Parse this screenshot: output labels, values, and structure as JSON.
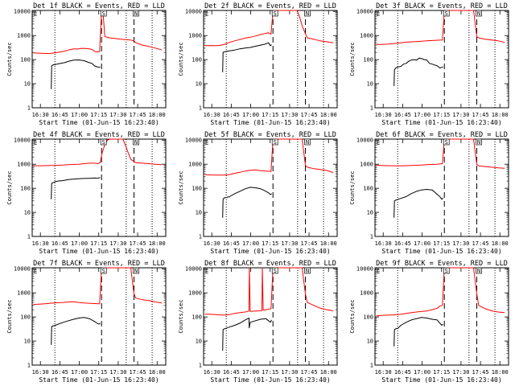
{
  "chart_data": {
    "type": "line",
    "figure_layout": "3x3 grid of log-scale count-rate plots",
    "common": {
      "ylabel": "Counts/sec",
      "xlabel": "Start Time (01-Jun-15 16:23:40)",
      "x_ticks": [
        "16:30",
        "16:45",
        "17:00",
        "17:15",
        "17:30",
        "17:45",
        "18:00"
      ],
      "x_tick_minutes": [
        6.33,
        21.33,
        36.33,
        51.33,
        66.33,
        81.33,
        96.33
      ],
      "xlim_minutes": [
        0,
        103
      ],
      "y_ticks": [
        "1",
        "10",
        "100",
        "1000",
        "10000"
      ],
      "ylim": [
        1,
        11000
      ],
      "y_scale": "log",
      "series_colors": {
        "events": "#000000",
        "lld": "#ff0000"
      },
      "dotted_lines_minutes": [
        17.5,
        72.5,
        92.5
      ],
      "dashed_lines_minutes": [
        53.5,
        78.5
      ],
      "marker_S_minutes": 53.5,
      "marker_N_minutes": 78.5
    },
    "panels": [
      {
        "title": "Det 1f BLACK = Events, RED = LLD",
        "events": {
          "x": [
            14.7,
            15,
            16,
            18,
            20,
            22,
            25,
            28,
            32,
            36,
            40,
            44,
            46,
            48,
            50,
            51.5,
            52.5
          ],
          "y": [
            6,
            55,
            60,
            63,
            66,
            70,
            75,
            85,
            95,
            97,
            90,
            75,
            70,
            55,
            50,
            48,
            50
          ]
        },
        "lld": {
          "x": [
            1,
            5,
            10,
            14,
            17,
            20,
            23,
            26,
            29,
            32,
            35,
            38,
            41,
            44,
            46,
            48,
            50,
            52,
            53.5,
            54.5,
            56,
            60,
            64,
            68,
            72,
            76,
            78.5,
            80,
            85,
            90,
            95,
            100
          ],
          "y": [
            190,
            185,
            180,
            180,
            190,
            200,
            215,
            230,
            260,
            280,
            275,
            295,
            290,
            280,
            265,
            220,
            210,
            215,
            10500,
            11000,
            900,
            800,
            750,
            700,
            680,
            650,
            600,
            500,
            400,
            350,
            300,
            250
          ]
        }
      },
      {
        "title": "Det 2f BLACK = Events, RED = LLD",
        "events": {
          "x": [
            14.7,
            15,
            16,
            18,
            20,
            24,
            28,
            32,
            36,
            40,
            44,
            48,
            50,
            51.5,
            52.5
          ],
          "y": [
            30,
            200,
            210,
            220,
            230,
            250,
            280,
            300,
            320,
            360,
            400,
            450,
            500,
            380,
            420
          ]
        },
        "lld": {
          "x": [
            1,
            5,
            10,
            14,
            17,
            20,
            24,
            28,
            32,
            36,
            40,
            44,
            47,
            50,
            52,
            53.5,
            54,
            56,
            60,
            64,
            68,
            72,
            74,
            76,
            78.5,
            80,
            85,
            90,
            95,
            100
          ],
          "y": [
            380,
            385,
            380,
            400,
            450,
            520,
            600,
            680,
            780,
            850,
            950,
            1100,
            1200,
            1300,
            1150,
            10000,
            11000,
            11000,
            11000,
            11000,
            11000,
            11000,
            6000,
            2500,
            1200,
            800,
            700,
            600,
            550,
            500
          ]
        }
      },
      {
        "title": "Det 3f BLACK = Events, RED = LLD",
        "events": {
          "x": [
            14.7,
            15,
            16,
            18,
            20,
            22,
            24,
            26,
            28,
            30,
            32,
            34,
            36,
            38,
            40,
            42,
            44,
            46,
            48,
            50,
            51.5,
            52.5
          ],
          "y": [
            8,
            38,
            45,
            50,
            52,
            65,
            70,
            85,
            95,
            100,
            95,
            115,
            110,
            100,
            95,
            70,
            65,
            60,
            55,
            45,
            48,
            50
          ]
        },
        "lld": {
          "x": [
            1,
            5,
            10,
            14,
            17,
            20,
            24,
            28,
            32,
            36,
            40,
            44,
            48,
            52,
            53.5,
            54.5,
            56,
            60,
            64,
            68,
            72,
            76,
            78.5,
            80,
            85,
            90,
            95,
            100
          ],
          "y": [
            430,
            430,
            440,
            460,
            480,
            500,
            530,
            550,
            560,
            580,
            600,
            620,
            640,
            650,
            10500,
            11000,
            11000,
            11000,
            11000,
            11000,
            11000,
            11000,
            900,
            800,
            700,
            650,
            600,
            520
          ]
        }
      },
      {
        "title": "Det 4f BLACK = Events, RED = LLD",
        "events": {
          "x": [
            14.7,
            15,
            16,
            18,
            20,
            24,
            28,
            32,
            36,
            40,
            44,
            48,
            50,
            51.5,
            52.5
          ],
          "y": [
            35,
            160,
            170,
            190,
            200,
            210,
            230,
            240,
            250,
            255,
            260,
            265,
            260,
            270,
            280
          ]
        },
        "lld": {
          "x": [
            1,
            5,
            10,
            14,
            17,
            20,
            24,
            28,
            32,
            36,
            40,
            44,
            48,
            51,
            52.5,
            54,
            56,
            58,
            60,
            62,
            64,
            66,
            68,
            70,
            72,
            74,
            76,
            78.5,
            80,
            85,
            90,
            95,
            100
          ],
          "y": [
            860,
            860,
            870,
            880,
            890,
            900,
            920,
            950,
            980,
            1000,
            1050,
            1100,
            1100,
            1050,
            1200,
            3000,
            6500,
            10000,
            11000,
            11000,
            11000,
            11000,
            11000,
            11000,
            6000,
            3000,
            1600,
            1300,
            1150,
            1100,
            1050,
            1000,
            950
          ]
        }
      },
      {
        "title": "Det 5f BLACK = Events, RED = LLD",
        "events": {
          "x": [
            14.7,
            15,
            16,
            18,
            20,
            24,
            28,
            32,
            36,
            40,
            44,
            46,
            48,
            50,
            51.5,
            52.5
          ],
          "y": [
            6,
            35,
            40,
            42,
            45,
            60,
            75,
            95,
            110,
            105,
            95,
            85,
            75,
            65,
            55,
            60
          ]
        },
        "lld": {
          "x": [
            1,
            5,
            10,
            14,
            17,
            20,
            24,
            28,
            32,
            36,
            40,
            44,
            48,
            52,
            53.5,
            54.5,
            56,
            60,
            64,
            68,
            72,
            76,
            78.5,
            80,
            85,
            90,
            95,
            100
          ],
          "y": [
            370,
            360,
            350,
            350,
            360,
            370,
            420,
            460,
            520,
            560,
            580,
            540,
            520,
            500,
            10500,
            11000,
            11000,
            11000,
            11000,
            11000,
            11000,
            11000,
            900,
            750,
            650,
            600,
            550,
            450
          ]
        }
      },
      {
        "title": "Det 6f BLACK = Events, RED = LLD",
        "events": {
          "x": [
            14.7,
            15,
            16,
            18,
            20,
            24,
            28,
            32,
            36,
            40,
            44,
            46,
            48,
            50,
            51.5,
            52.5
          ],
          "y": [
            6,
            30,
            32,
            35,
            38,
            45,
            60,
            75,
            85,
            90,
            85,
            70,
            55,
            45,
            35,
            40
          ]
        },
        "lld": {
          "x": [
            1,
            5,
            10,
            14,
            17,
            20,
            24,
            28,
            32,
            36,
            40,
            44,
            48,
            52,
            53.5,
            54.5,
            56,
            60,
            64,
            68,
            72,
            76,
            78.5,
            80,
            85,
            90,
            95,
            100
          ],
          "y": [
            900,
            880,
            870,
            860,
            850,
            860,
            870,
            880,
            900,
            920,
            950,
            980,
            1000,
            1050,
            10500,
            11000,
            11000,
            11000,
            11000,
            11000,
            11000,
            11000,
            1000,
            850,
            800,
            750,
            700,
            680
          ]
        }
      },
      {
        "title": "Det 7f BLACK = Events, RED = LLD",
        "events": {
          "x": [
            14.7,
            15,
            16,
            18,
            20,
            24,
            28,
            32,
            36,
            40,
            44,
            48,
            50,
            51.5,
            52.5
          ],
          "y": [
            7,
            40,
            42,
            45,
            50,
            60,
            70,
            80,
            90,
            95,
            85,
            65,
            55,
            50,
            55
          ]
        },
        "lld": {
          "x": [
            1,
            5,
            10,
            14,
            17,
            20,
            24,
            28,
            32,
            36,
            40,
            44,
            48,
            52,
            53.5,
            54.5,
            56,
            60,
            64,
            68,
            72,
            76,
            78.5,
            80,
            85,
            90,
            95,
            100
          ],
          "y": [
            330,
            340,
            350,
            370,
            380,
            390,
            400,
            420,
            430,
            400,
            380,
            370,
            360,
            350,
            10500,
            11000,
            11000,
            11000,
            11000,
            11000,
            11000,
            11000,
            900,
            600,
            520,
            480,
            420,
            380
          ]
        }
      },
      {
        "title": "Det 8f BLACK = Events, RED = LLD",
        "events": {
          "x": [
            14.7,
            15,
            16,
            18,
            20,
            24,
            28,
            32,
            35,
            35.2,
            36,
            40,
            44,
            48,
            50,
            51.5,
            52.5
          ],
          "y": [
            4,
            30,
            32,
            35,
            38,
            45,
            55,
            75,
            90,
            35,
            60,
            70,
            80,
            85,
            70,
            60,
            75
          ]
        },
        "lld": {
          "x": [
            1,
            5,
            10,
            14,
            17,
            20,
            24,
            28,
            32,
            34,
            35,
            35.3,
            36,
            40,
            44,
            45,
            45.3,
            46,
            48,
            50,
            52,
            53.5,
            54.5,
            56,
            60,
            64,
            68,
            72,
            76,
            78.5,
            80,
            85,
            90,
            95,
            100
          ],
          "y": [
            130,
            130,
            125,
            120,
            120,
            125,
            140,
            150,
            160,
            170,
            175,
            11000,
            170,
            175,
            180,
            185,
            11000,
            190,
            200,
            210,
            220,
            10500,
            11000,
            11000,
            11000,
            11000,
            11000,
            11000,
            11000,
            900,
            400,
            300,
            230,
            200,
            180
          ]
        }
      },
      {
        "title": "Det 9f BLACK = Events, RED = LLD",
        "events": {
          "x": [
            14.7,
            15,
            16,
            18,
            20,
            24,
            28,
            32,
            36,
            40,
            44,
            48,
            50,
            51.5,
            52.5
          ],
          "y": [
            6,
            30,
            32,
            35,
            45,
            60,
            75,
            85,
            95,
            90,
            80,
            75,
            55,
            45,
            50
          ]
        },
        "lld": {
          "x": [
            1,
            5,
            10,
            14,
            17,
            20,
            24,
            28,
            32,
            36,
            40,
            44,
            48,
            50,
            52,
            53.5,
            54.5,
            56,
            60,
            64,
            68,
            72,
            76,
            78.5,
            80,
            85,
            90,
            95,
            100
          ],
          "y": [
            110,
            115,
            120,
            120,
            125,
            130,
            140,
            150,
            160,
            170,
            175,
            200,
            230,
            280,
            300,
            10500,
            11000,
            11000,
            11000,
            11000,
            11000,
            11000,
            11000,
            900,
            300,
            220,
            180,
            160,
            150
          ]
        }
      }
    ]
  },
  "markers": {
    "s_label": "S",
    "n_label": "N"
  }
}
